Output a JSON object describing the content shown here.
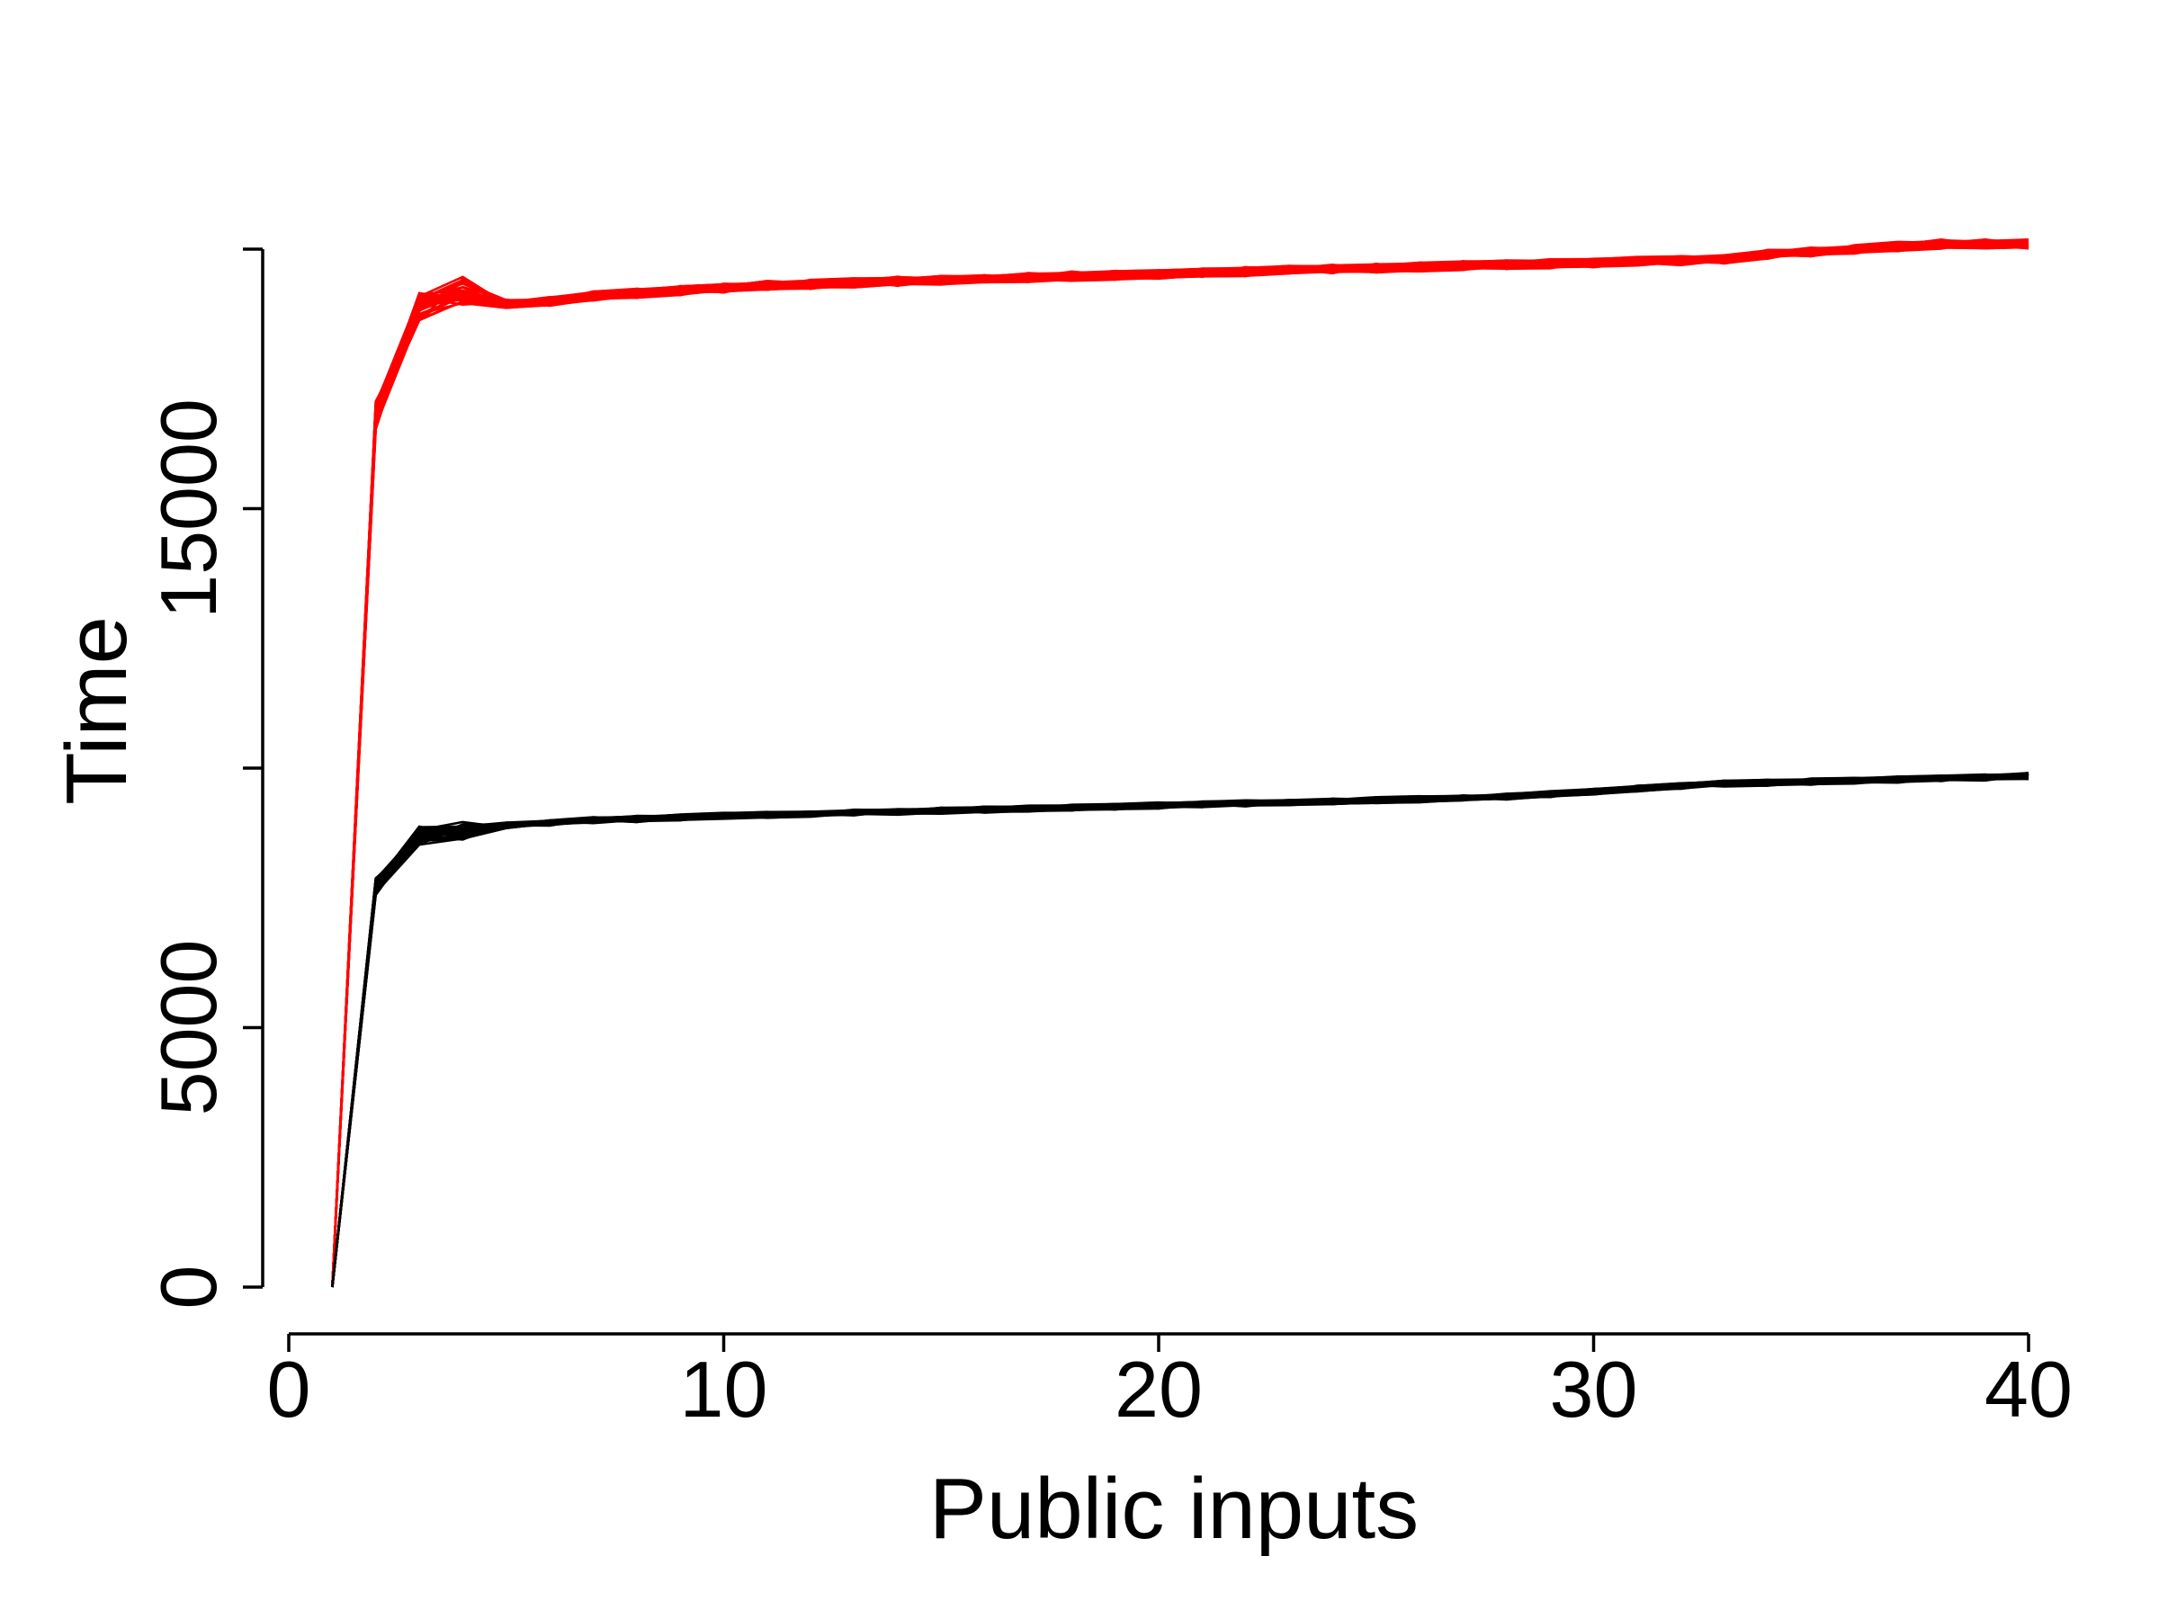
{
  "chart_data": {
    "type": "line",
    "title": "",
    "xlabel": "Public inputs",
    "ylabel": "Time",
    "xlim": [
      0,
      40
    ],
    "ylim": [
      0,
      20000
    ],
    "x_ticks": [
      0,
      10,
      20,
      30,
      40
    ],
    "y_ticks": [
      0,
      5000,
      15000
    ],
    "x": [
      1,
      2,
      3,
      4,
      5,
      6,
      7,
      8,
      9,
      10,
      11,
      12,
      13,
      14,
      15,
      16,
      17,
      18,
      19,
      20,
      21,
      22,
      23,
      24,
      25,
      26,
      27,
      28,
      29,
      30,
      31,
      32,
      33,
      34,
      35,
      36,
      37,
      38,
      39,
      40
    ],
    "grid": false,
    "legend": "none",
    "colors": {
      "red_group": "#ff0000",
      "black_group": "#000000"
    },
    "series_groups": [
      {
        "color": "#ff0000",
        "count": 30,
        "values": [
          0,
          16800,
          18900,
          19200,
          18950,
          19000,
          19100,
          19150,
          19200,
          19250,
          19300,
          19320,
          19350,
          19380,
          19400,
          19420,
          19450,
          19480,
          19500,
          19520,
          19550,
          19570,
          19600,
          19620,
          19640,
          19660,
          19680,
          19700,
          19720,
          19740,
          19760,
          19780,
          19800,
          19900,
          19950,
          20000,
          20050,
          20100,
          20100,
          20100
        ]
      },
      {
        "color": "#000000",
        "count": 30,
        "values": [
          0,
          7700,
          8700,
          8800,
          8900,
          8950,
          9000,
          9020,
          9050,
          9080,
          9100,
          9120,
          9140,
          9160,
          9180,
          9200,
          9220,
          9240,
          9260,
          9280,
          9300,
          9320,
          9340,
          9360,
          9380,
          9400,
          9420,
          9450,
          9500,
          9550,
          9600,
          9650,
          9700,
          9720,
          9740,
          9760,
          9780,
          9800,
          9820,
          9850
        ]
      }
    ]
  }
}
